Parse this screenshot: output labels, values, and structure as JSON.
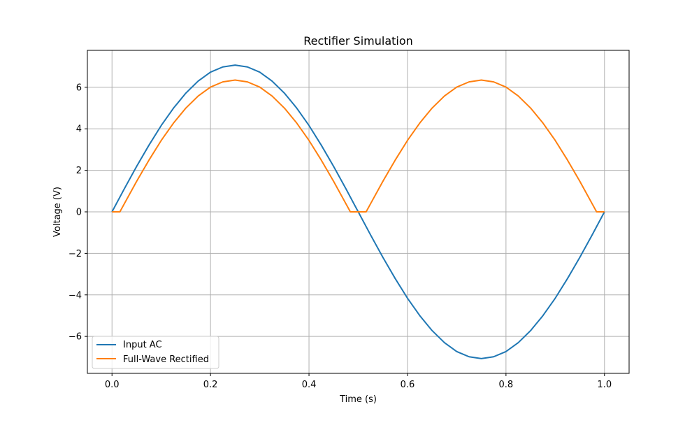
{
  "chart_data": {
    "type": "line",
    "title": "Rectifier Simulation",
    "xlabel": "Time (s)",
    "ylabel": "Voltage (V)",
    "xlim": [
      -0.05,
      1.05
    ],
    "ylim": [
      -7.78,
      7.78
    ],
    "xticks": [
      0.0,
      0.2,
      0.4,
      0.6,
      0.8,
      1.0
    ],
    "xtick_labels": [
      "0.0",
      "0.2",
      "0.4",
      "0.6",
      "0.8",
      "1.0"
    ],
    "yticks": [
      -6,
      -4,
      -2,
      0,
      2,
      4,
      6
    ],
    "ytick_labels": [
      "−6",
      "−4",
      "−2",
      "0",
      "2",
      "4",
      "6"
    ],
    "grid": true,
    "legend_position": "lower-left",
    "series": [
      {
        "name": "Input AC",
        "color": "#1f77b4",
        "x": [
          0.0,
          0.025,
          0.05,
          0.075,
          0.1,
          0.125,
          0.15,
          0.175,
          0.2,
          0.225,
          0.25,
          0.275,
          0.3,
          0.325,
          0.35,
          0.375,
          0.4,
          0.425,
          0.45,
          0.475,
          0.5,
          0.525,
          0.55,
          0.575,
          0.6,
          0.625,
          0.65,
          0.675,
          0.7,
          0.725,
          0.75,
          0.775,
          0.8,
          0.825,
          0.85,
          0.875,
          0.9,
          0.925,
          0.95,
          0.975,
          1.0
        ],
        "y": [
          0.0,
          1.11,
          2.19,
          3.21,
          4.16,
          5.0,
          5.72,
          6.3,
          6.73,
          6.98,
          7.07,
          6.98,
          6.73,
          6.3,
          5.72,
          5.0,
          4.16,
          3.21,
          2.19,
          1.11,
          0.0,
          -1.11,
          -2.19,
          -3.21,
          -4.16,
          -5.0,
          -5.72,
          -6.3,
          -6.73,
          -6.98,
          -7.07,
          -6.98,
          -6.73,
          -6.3,
          -5.72,
          -5.0,
          -4.16,
          -3.21,
          -2.19,
          -1.11,
          0.0
        ]
      },
      {
        "name": "Full-Wave Rectified",
        "color": "#ff7f0e",
        "x": [
          0.0,
          0.016,
          0.025,
          0.05,
          0.075,
          0.1,
          0.125,
          0.15,
          0.175,
          0.2,
          0.225,
          0.25,
          0.275,
          0.3,
          0.325,
          0.35,
          0.375,
          0.4,
          0.425,
          0.45,
          0.475,
          0.484,
          0.516,
          0.525,
          0.55,
          0.575,
          0.6,
          0.625,
          0.65,
          0.675,
          0.7,
          0.725,
          0.75,
          0.775,
          0.8,
          0.825,
          0.85,
          0.875,
          0.9,
          0.925,
          0.95,
          0.975,
          0.984,
          1.0
        ],
        "y": [
          0.0,
          0.0,
          0.39,
          1.47,
          2.49,
          3.44,
          4.28,
          5.0,
          5.58,
          6.01,
          6.26,
          6.35,
          6.26,
          6.01,
          5.58,
          5.0,
          4.28,
          3.44,
          2.49,
          1.47,
          0.39,
          0.0,
          0.0,
          0.39,
          1.47,
          2.49,
          3.44,
          4.28,
          5.0,
          5.58,
          6.01,
          6.26,
          6.35,
          6.26,
          6.01,
          5.58,
          5.0,
          4.28,
          3.44,
          2.49,
          1.47,
          0.39,
          0.0,
          0.0
        ]
      }
    ]
  }
}
